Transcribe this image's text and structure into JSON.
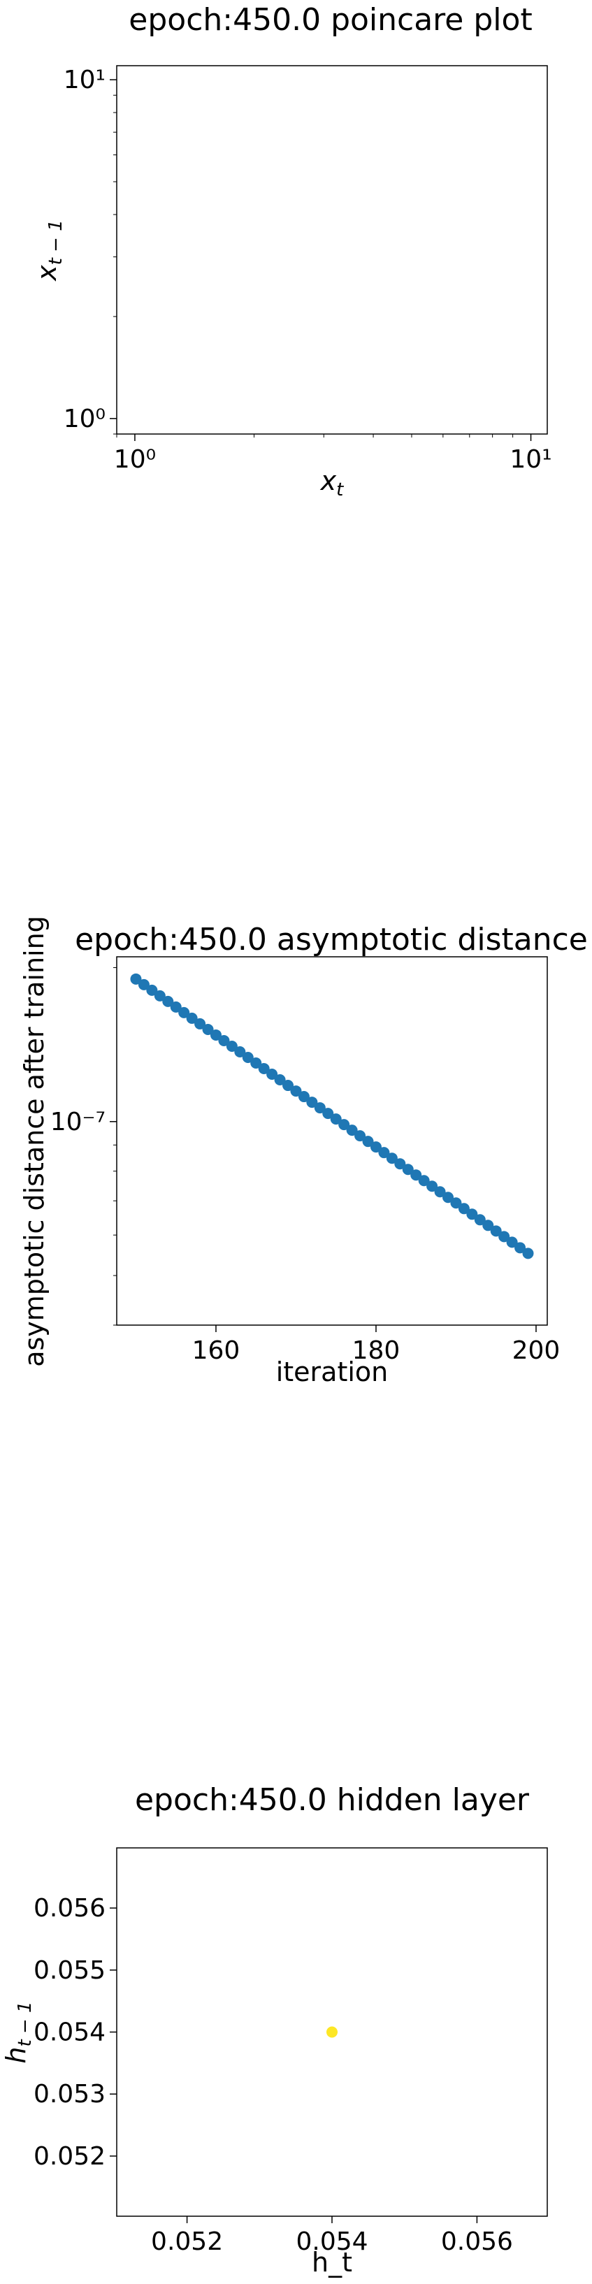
{
  "chart_data": [
    {
      "type": "scatter",
      "title": "epoch:450.0 poincare plot",
      "xlabel": "x_t",
      "ylabel": "x_{t-1}",
      "xscale": "log",
      "yscale": "log",
      "xlim": [
        0.9,
        11
      ],
      "ylim": [
        0.9,
        11
      ],
      "x_ticks": [
        {
          "value": 1,
          "label": "10⁰"
        },
        {
          "value": 10,
          "label": "10¹"
        }
      ],
      "y_ticks": [
        {
          "value": 1,
          "label": "10⁰"
        },
        {
          "value": 10,
          "label": "10¹"
        }
      ],
      "points": [],
      "grid": false
    },
    {
      "type": "scatter",
      "title": "epoch:450.0 asymptotic distance",
      "xlabel": "iteration",
      "ylabel": "asymptotic distance after training",
      "yscale": "log",
      "xlim": [
        147.6,
        201.4
      ],
      "ylim": [
        4e-08,
        2.1e-07
      ],
      "x_ticks": [
        {
          "value": 160,
          "label": "160"
        },
        {
          "value": 180,
          "label": "180"
        },
        {
          "value": 200,
          "label": "200"
        }
      ],
      "y_ticks": [
        {
          "value": 1e-07,
          "label": "10⁻⁷"
        }
      ],
      "x": [
        150,
        151,
        152,
        153,
        154,
        155,
        156,
        157,
        158,
        159,
        160,
        161,
        162,
        163,
        164,
        165,
        166,
        167,
        168,
        169,
        170,
        171,
        172,
        173,
        174,
        175,
        176,
        177,
        178,
        179,
        180,
        181,
        182,
        183,
        184,
        185,
        186,
        187,
        188,
        189,
        190,
        191,
        192,
        193,
        194,
        195,
        196,
        197,
        198,
        199
      ],
      "y": [
        1.8998e-07,
        1.8525e-07,
        1.8064e-07,
        1.7614e-07,
        1.7176e-07,
        1.6749e-07,
        1.6332e-07,
        1.5925e-07,
        1.5529e-07,
        1.5142e-07,
        1.4765e-07,
        1.4398e-07,
        1.4039e-07,
        1.369e-07,
        1.3349e-07,
        1.3017e-07,
        1.2693e-07,
        1.2377e-07,
        1.2069e-07,
        1.1768e-07,
        1.1475e-07,
        1.119e-07,
        1.0911e-07,
        1.064e-07,
        1.0375e-07,
        1.0117e-07,
        9.865e-08,
        9.619e-08,
        9.38e-08,
        9.146e-08,
        8.919e-08,
        8.697e-08,
        8.48e-08,
        8.269e-08,
        8.063e-08,
        7.863e-08,
        7.667e-08,
        7.476e-08,
        7.29e-08,
        7.109e-08,
        6.932e-08,
        6.759e-08,
        6.591e-08,
        6.427e-08,
        6.267e-08,
        6.111e-08,
        5.959e-08,
        5.81e-08,
        5.666e-08,
        5.525e-08
      ],
      "color": "#1f77b4",
      "grid": false
    },
    {
      "type": "scatter",
      "title": "epoch:450.0 hidden layer",
      "xlabel": "h_t",
      "ylabel": "h_{t-1}",
      "xlim": [
        0.05103,
        0.05697
      ],
      "ylim": [
        0.05103,
        0.05697
      ],
      "x_ticks": [
        {
          "value": 0.052,
          "label": "0.052"
        },
        {
          "value": 0.054,
          "label": "0.054"
        },
        {
          "value": 0.056,
          "label": "0.056"
        }
      ],
      "y_ticks": [
        {
          "value": 0.052,
          "label": "0.052"
        },
        {
          "value": 0.053,
          "label": "0.053"
        },
        {
          "value": 0.054,
          "label": "0.054"
        },
        {
          "value": 0.055,
          "label": "0.055"
        },
        {
          "value": 0.056,
          "label": "0.056"
        }
      ],
      "x": [
        0.054
      ],
      "y": [
        0.054
      ],
      "color": "#fde725",
      "grid": false
    }
  ]
}
